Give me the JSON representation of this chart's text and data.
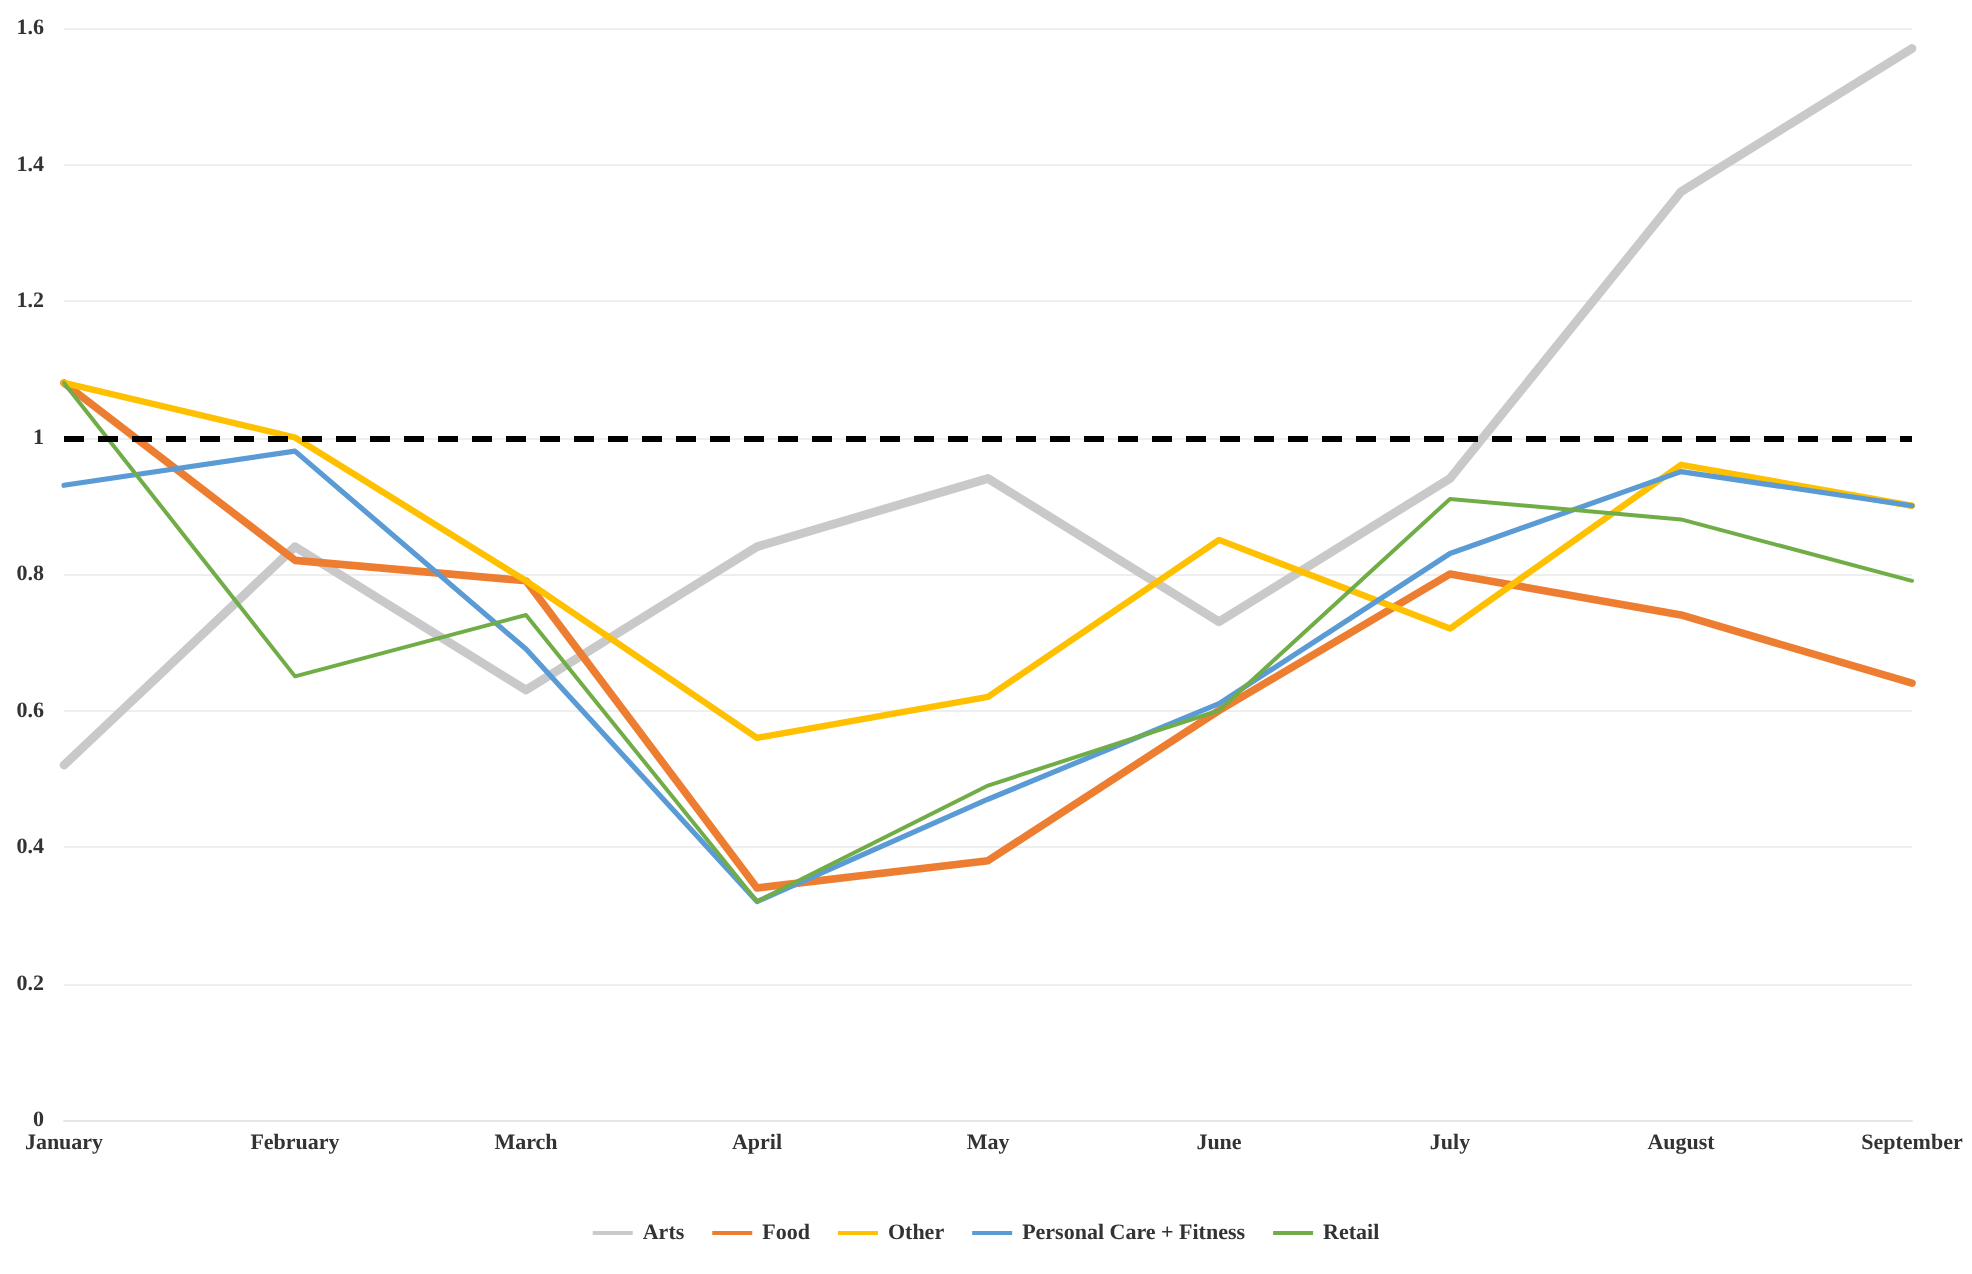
{
  "chart_data": {
    "type": "line",
    "categories": [
      "January",
      "February",
      "March",
      "April",
      "May",
      "June",
      "July",
      "August",
      "September"
    ],
    "series": [
      {
        "name": "Arts",
        "color": "#c9c9c9",
        "values": [
          0.52,
          0.84,
          0.63,
          0.84,
          0.94,
          0.73,
          0.94,
          1.36,
          1.57
        ]
      },
      {
        "name": "Food",
        "color": "#ed7d31",
        "values": [
          1.08,
          0.82,
          0.79,
          0.34,
          0.38,
          0.6,
          0.8,
          0.74,
          0.64
        ]
      },
      {
        "name": "Other",
        "color": "#ffc000",
        "values": [
          1.08,
          1.0,
          0.79,
          0.56,
          0.62,
          0.85,
          0.72,
          0.96,
          0.9
        ]
      },
      {
        "name": "Personal Care + Fitness",
        "color": "#5b9bd5",
        "values": [
          0.93,
          0.98,
          0.69,
          0.32,
          0.47,
          0.61,
          0.83,
          0.95,
          0.9
        ]
      },
      {
        "name": "Retail",
        "color": "#70ad47",
        "values": [
          1.08,
          0.65,
          0.74,
          0.32,
          0.49,
          0.6,
          0.91,
          0.88,
          0.79
        ]
      }
    ],
    "ylim": [
      0,
      1.6
    ],
    "yticks": [
      0,
      0.2,
      0.4,
      0.6,
      0.8,
      1,
      1.2,
      1.4,
      1.6
    ],
    "ref_lines": [
      {
        "axis": "y",
        "value": 1,
        "color": "#000000",
        "line_style": "dashed"
      }
    ],
    "grid": "y",
    "legend": "bottom",
    "marker": "none",
    "line_style": "solid"
  }
}
